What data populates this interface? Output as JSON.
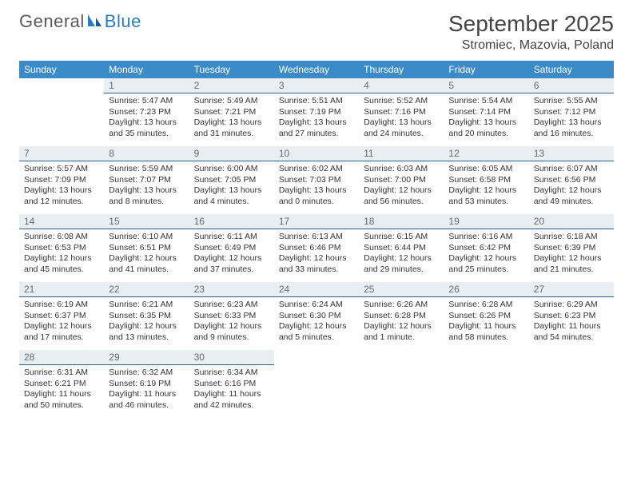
{
  "logo": {
    "part1": "General",
    "part2": "Blue"
  },
  "title": "September 2025",
  "location": "Stromiec, Mazovia, Poland",
  "colors": {
    "header_bg": "#3b8bc8",
    "header_text": "#ffffff",
    "daynum_bg": "#e9eef2",
    "daynum_border": "#2f5f86",
    "brand_blue": "#2b7bbf"
  },
  "weekdays": [
    "Sunday",
    "Monday",
    "Tuesday",
    "Wednesday",
    "Thursday",
    "Friday",
    "Saturday"
  ],
  "weeks": [
    [
      null,
      {
        "n": "1",
        "sr": "Sunrise: 5:47 AM",
        "ss": "Sunset: 7:23 PM",
        "dl": "Daylight: 13 hours and 35 minutes."
      },
      {
        "n": "2",
        "sr": "Sunrise: 5:49 AM",
        "ss": "Sunset: 7:21 PM",
        "dl": "Daylight: 13 hours and 31 minutes."
      },
      {
        "n": "3",
        "sr": "Sunrise: 5:51 AM",
        "ss": "Sunset: 7:19 PM",
        "dl": "Daylight: 13 hours and 27 minutes."
      },
      {
        "n": "4",
        "sr": "Sunrise: 5:52 AM",
        "ss": "Sunset: 7:16 PM",
        "dl": "Daylight: 13 hours and 24 minutes."
      },
      {
        "n": "5",
        "sr": "Sunrise: 5:54 AM",
        "ss": "Sunset: 7:14 PM",
        "dl": "Daylight: 13 hours and 20 minutes."
      },
      {
        "n": "6",
        "sr": "Sunrise: 5:55 AM",
        "ss": "Sunset: 7:12 PM",
        "dl": "Daylight: 13 hours and 16 minutes."
      }
    ],
    [
      {
        "n": "7",
        "sr": "Sunrise: 5:57 AM",
        "ss": "Sunset: 7:09 PM",
        "dl": "Daylight: 13 hours and 12 minutes."
      },
      {
        "n": "8",
        "sr": "Sunrise: 5:59 AM",
        "ss": "Sunset: 7:07 PM",
        "dl": "Daylight: 13 hours and 8 minutes."
      },
      {
        "n": "9",
        "sr": "Sunrise: 6:00 AM",
        "ss": "Sunset: 7:05 PM",
        "dl": "Daylight: 13 hours and 4 minutes."
      },
      {
        "n": "10",
        "sr": "Sunrise: 6:02 AM",
        "ss": "Sunset: 7:03 PM",
        "dl": "Daylight: 13 hours and 0 minutes."
      },
      {
        "n": "11",
        "sr": "Sunrise: 6:03 AM",
        "ss": "Sunset: 7:00 PM",
        "dl": "Daylight: 12 hours and 56 minutes."
      },
      {
        "n": "12",
        "sr": "Sunrise: 6:05 AM",
        "ss": "Sunset: 6:58 PM",
        "dl": "Daylight: 12 hours and 53 minutes."
      },
      {
        "n": "13",
        "sr": "Sunrise: 6:07 AM",
        "ss": "Sunset: 6:56 PM",
        "dl": "Daylight: 12 hours and 49 minutes."
      }
    ],
    [
      {
        "n": "14",
        "sr": "Sunrise: 6:08 AM",
        "ss": "Sunset: 6:53 PM",
        "dl": "Daylight: 12 hours and 45 minutes."
      },
      {
        "n": "15",
        "sr": "Sunrise: 6:10 AM",
        "ss": "Sunset: 6:51 PM",
        "dl": "Daylight: 12 hours and 41 minutes."
      },
      {
        "n": "16",
        "sr": "Sunrise: 6:11 AM",
        "ss": "Sunset: 6:49 PM",
        "dl": "Daylight: 12 hours and 37 minutes."
      },
      {
        "n": "17",
        "sr": "Sunrise: 6:13 AM",
        "ss": "Sunset: 6:46 PM",
        "dl": "Daylight: 12 hours and 33 minutes."
      },
      {
        "n": "18",
        "sr": "Sunrise: 6:15 AM",
        "ss": "Sunset: 6:44 PM",
        "dl": "Daylight: 12 hours and 29 minutes."
      },
      {
        "n": "19",
        "sr": "Sunrise: 6:16 AM",
        "ss": "Sunset: 6:42 PM",
        "dl": "Daylight: 12 hours and 25 minutes."
      },
      {
        "n": "20",
        "sr": "Sunrise: 6:18 AM",
        "ss": "Sunset: 6:39 PM",
        "dl": "Daylight: 12 hours and 21 minutes."
      }
    ],
    [
      {
        "n": "21",
        "sr": "Sunrise: 6:19 AM",
        "ss": "Sunset: 6:37 PM",
        "dl": "Daylight: 12 hours and 17 minutes."
      },
      {
        "n": "22",
        "sr": "Sunrise: 6:21 AM",
        "ss": "Sunset: 6:35 PM",
        "dl": "Daylight: 12 hours and 13 minutes."
      },
      {
        "n": "23",
        "sr": "Sunrise: 6:23 AM",
        "ss": "Sunset: 6:33 PM",
        "dl": "Daylight: 12 hours and 9 minutes."
      },
      {
        "n": "24",
        "sr": "Sunrise: 6:24 AM",
        "ss": "Sunset: 6:30 PM",
        "dl": "Daylight: 12 hours and 5 minutes."
      },
      {
        "n": "25",
        "sr": "Sunrise: 6:26 AM",
        "ss": "Sunset: 6:28 PM",
        "dl": "Daylight: 12 hours and 1 minute."
      },
      {
        "n": "26",
        "sr": "Sunrise: 6:28 AM",
        "ss": "Sunset: 6:26 PM",
        "dl": "Daylight: 11 hours and 58 minutes."
      },
      {
        "n": "27",
        "sr": "Sunrise: 6:29 AM",
        "ss": "Sunset: 6:23 PM",
        "dl": "Daylight: 11 hours and 54 minutes."
      }
    ],
    [
      {
        "n": "28",
        "sr": "Sunrise: 6:31 AM",
        "ss": "Sunset: 6:21 PM",
        "dl": "Daylight: 11 hours and 50 minutes."
      },
      {
        "n": "29",
        "sr": "Sunrise: 6:32 AM",
        "ss": "Sunset: 6:19 PM",
        "dl": "Daylight: 11 hours and 46 minutes."
      },
      {
        "n": "30",
        "sr": "Sunrise: 6:34 AM",
        "ss": "Sunset: 6:16 PM",
        "dl": "Daylight: 11 hours and 42 minutes."
      },
      null,
      null,
      null,
      null
    ]
  ]
}
